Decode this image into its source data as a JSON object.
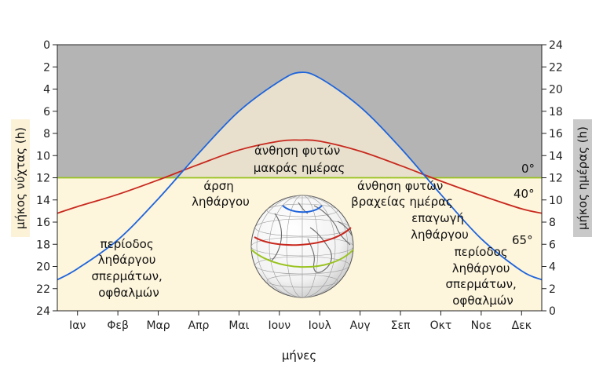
{
  "chart_data": {
    "type": "line",
    "title": "",
    "xlabel": "μήνες",
    "ylabel_left": "μήκος νύχτας (h)",
    "ylabel_right": "μήκος ημέρας (h)",
    "categories": [
      "Ιαν",
      "Φεβ",
      "Μαρ",
      "Απρ",
      "Μαι",
      "Ιουν",
      "Ιουλ",
      "Αυγ",
      "Σεπ",
      "Οκτ",
      "Νοε",
      "Δεκ"
    ],
    "ylim_left": [
      24,
      0
    ],
    "ylim_right": [
      0,
      24
    ],
    "y_ticks": [
      0,
      2,
      4,
      6,
      8,
      10,
      12,
      14,
      16,
      18,
      20,
      22,
      24
    ],
    "x_range_months": [
      0.5,
      12.5
    ],
    "series": [
      {
        "name": "0°",
        "color": "#99c31e",
        "x": [
          0.5,
          12.5
        ],
        "night_hours": [
          12,
          12
        ]
      },
      {
        "name": "40°",
        "color": "#c8281e",
        "x": [
          0.5,
          1,
          2,
          3,
          4,
          5,
          6,
          6.5,
          7,
          8,
          9,
          10,
          11,
          12,
          12.5
        ],
        "night_hours": [
          15.2,
          14.6,
          13.5,
          12.2,
          10.8,
          9.5,
          8.7,
          8.6,
          8.7,
          9.6,
          10.9,
          12.3,
          13.6,
          14.8,
          15.2
        ]
      },
      {
        "name": "65°",
        "color": "#1e64dc",
        "x": [
          0.5,
          1,
          2,
          3,
          4,
          5,
          6,
          6.5,
          7,
          8,
          9,
          10,
          11,
          12,
          12.5
        ],
        "night_hours": [
          21.2,
          20.2,
          17.6,
          13.9,
          9.8,
          6.0,
          3.3,
          2.5,
          3.0,
          5.6,
          9.3,
          13.5,
          17.5,
          20.4,
          21.2
        ]
      }
    ],
    "regions": [
      {
        "name": "night-region",
        "color": "#b4b4b4"
      },
      {
        "name": "day-region",
        "color": "#fdf5dc"
      },
      {
        "name": "between-region",
        "color": "#e8e0cc"
      }
    ],
    "annotations": [
      {
        "lines": [
          "άνθηση φυτών",
          "μακράς ημέρας"
        ]
      },
      {
        "lines": [
          "άρση",
          "ληθάργου"
        ]
      },
      {
        "lines": [
          "άνθηση φυτών",
          "βραχείας ημέρας"
        ]
      },
      {
        "lines": [
          "επαγωγή",
          "ληθάργου"
        ]
      },
      {
        "lines": [
          "περίοδος",
          "ληθάργου",
          "σπερμάτων,",
          "οφθαλμών"
        ]
      },
      {
        "lines": [
          "περίοδος",
          "ληθάργου",
          "σπερμάτων,",
          "οφθαλμών"
        ]
      }
    ],
    "series_labels": [
      "0°",
      "40°",
      "65°"
    ],
    "grid": false,
    "legend": "none"
  }
}
